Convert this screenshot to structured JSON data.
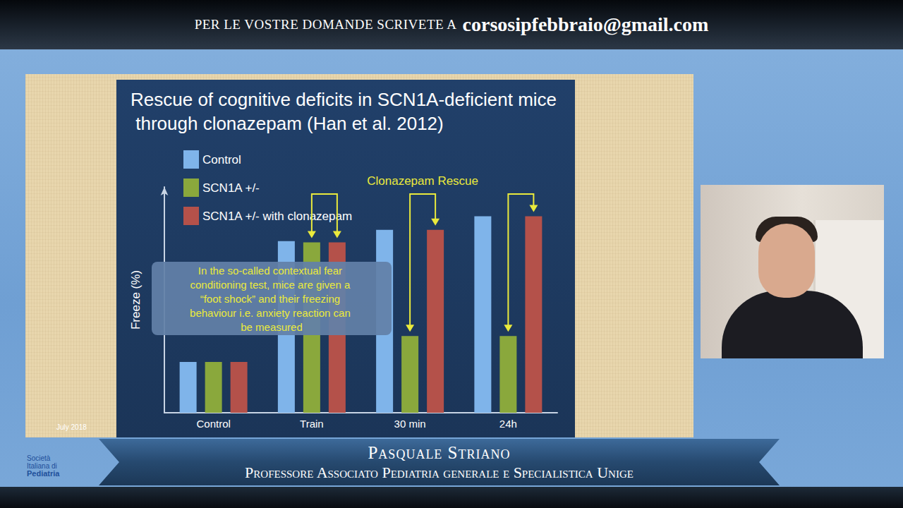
{
  "banner": {
    "text": "PER LE VOSTRE DOMANDE SCRIVETE A",
    "email": "corsosipfebbraio@gmail.com"
  },
  "speaker": {
    "name": "Pasquale Striano",
    "role": "Professore Associato Pediatria generale e Specialistica Unige"
  },
  "slide_date": "July 2018",
  "logo": [
    "Società",
    "Italiana di",
    "Pediatria"
  ],
  "chart_data": {
    "type": "bar",
    "title": "Rescue of cognitive deficits in SCN1A-deficient mice through clonazepam (Han et al. 2012)",
    "y_label": "Freeze (%)",
    "categories": [
      "Control",
      "Train",
      "30 min",
      "24h"
    ],
    "series": [
      {
        "name": "Control",
        "color": "#7fb4ea",
        "values": [
          22.5,
          76,
          81,
          87
        ]
      },
      {
        "name": "SCN1A +/-",
        "color": "#8aa83c",
        "values": [
          22.5,
          75.5,
          34,
          34
        ]
      },
      {
        "name": "SCN1A +/- with clonazepam",
        "color": "#b4514a",
        "values": [
          22.5,
          75.5,
          81,
          87
        ]
      }
    ],
    "ylim": [
      0,
      100
    ],
    "tick_labels": "x",
    "grid": false,
    "legend": "upper left",
    "data_labels": false,
    "annotations": [
      "Clonazepam Rescue",
      "In the so-called contextual fear conditioning test, mice are given a “foot shock” and their freezing behaviour i.e. anxiety reaction can be measured"
    ]
  }
}
